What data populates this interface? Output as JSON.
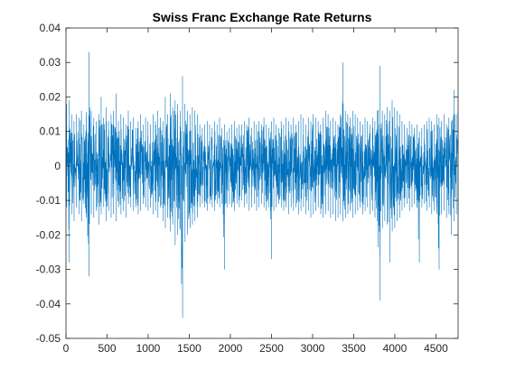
{
  "chart_data": {
    "type": "line",
    "title": "Swiss Franc Exchange Rate Returns",
    "xlabel": "",
    "ylabel": "",
    "xlim": [
      0,
      4770
    ],
    "ylim": [
      -0.05,
      0.04
    ],
    "x_ticks": [
      0,
      500,
      1000,
      1500,
      2000,
      2500,
      3000,
      3500,
      4000,
      4500
    ],
    "x_tick_labels": [
      "0",
      "500",
      "1000",
      "1500",
      "2000",
      "2500",
      "3000",
      "3500",
      "4000",
      "4500"
    ],
    "y_ticks": [
      -0.05,
      -0.04,
      -0.03,
      -0.02,
      -0.01,
      0,
      0.01,
      0.02,
      0.03,
      0.04
    ],
    "y_tick_labels": [
      "-0.05",
      "-0.04",
      "-0.03",
      "-0.02",
      "-0.01",
      "0",
      "0.01",
      "0.02",
      "0.03",
      "0.04"
    ],
    "grid": false,
    "legend": "none",
    "line_color": "#0072BD",
    "series": [
      {
        "x": [
          0,
          30,
          60,
          90,
          120,
          150,
          180,
          210,
          240,
          270,
          300,
          330,
          360,
          390,
          420,
          450,
          480,
          510,
          540,
          570,
          600,
          630,
          660,
          690,
          720,
          750,
          780,
          810,
          840,
          870,
          900,
          930,
          960,
          990,
          1020,
          1050,
          1080,
          1110,
          1140,
          1170,
          1200,
          1230,
          1260,
          1290,
          1320,
          1350,
          1380,
          1410,
          1440,
          1470,
          1500,
          1530,
          1560,
          1590,
          1620,
          1650,
          1680,
          1710,
          1740,
          1770,
          1800,
          1830,
          1860,
          1890,
          1920,
          1950,
          1980,
          2010,
          2040,
          2070,
          2100,
          2130,
          2160,
          2190,
          2220,
          2250,
          2280,
          2310,
          2340,
          2370,
          2400,
          2430,
          2460,
          2490,
          2520,
          2550,
          2580,
          2610,
          2640,
          2670,
          2700,
          2730,
          2760,
          2790,
          2820,
          2850,
          2880,
          2910,
          2940,
          2970,
          3000,
          3030,
          3060,
          3090,
          3120,
          3150,
          3180,
          3210,
          3240,
          3270,
          3300,
          3330,
          3360,
          3390,
          3420,
          3450,
          3480,
          3510,
          3540,
          3570,
          3600,
          3630,
          3660,
          3690,
          3720,
          3750,
          3780,
          3810,
          3840,
          3870,
          3900,
          3930,
          3960,
          3990,
          4020,
          4050,
          4080,
          4110,
          4140,
          4170,
          4200,
          4230,
          4260,
          4290,
          4320,
          4350,
          4380,
          4410,
          4440,
          4470,
          4500,
          4530,
          4560,
          4590,
          4620,
          4650,
          4680,
          4710,
          4740,
          4760
        ],
        "y_max": [
          0.018,
          0.019,
          0.015,
          0.013,
          0.015,
          0.014,
          0.016,
          0.012,
          0.014,
          0.033,
          0.016,
          0.014,
          0.013,
          0.015,
          0.02,
          0.014,
          0.017,
          0.013,
          0.015,
          0.016,
          0.021,
          0.013,
          0.015,
          0.014,
          0.012,
          0.016,
          0.013,
          0.014,
          0.011,
          0.013,
          0.015,
          0.012,
          0.014,
          0.013,
          0.012,
          0.015,
          0.013,
          0.016,
          0.014,
          0.013,
          0.02,
          0.015,
          0.021,
          0.017,
          0.019,
          0.018,
          0.016,
          0.026,
          0.018,
          0.016,
          0.015,
          0.017,
          0.016,
          0.015,
          0.012,
          0.011,
          0.012,
          0.013,
          0.012,
          0.011,
          0.013,
          0.012,
          0.014,
          0.011,
          0.012,
          0.01,
          0.011,
          0.012,
          0.013,
          0.011,
          0.012,
          0.012,
          0.013,
          0.012,
          0.014,
          0.011,
          0.013,
          0.012,
          0.013,
          0.012,
          0.014,
          0.012,
          0.011,
          0.013,
          0.014,
          0.012,
          0.011,
          0.013,
          0.012,
          0.014,
          0.013,
          0.012,
          0.014,
          0.012,
          0.013,
          0.015,
          0.014,
          0.012,
          0.014,
          0.013,
          0.015,
          0.014,
          0.013,
          0.012,
          0.014,
          0.016,
          0.015,
          0.013,
          0.014,
          0.013,
          0.012,
          0.015,
          0.03,
          0.016,
          0.015,
          0.014,
          0.016,
          0.015,
          0.014,
          0.013,
          0.012,
          0.014,
          0.013,
          0.012,
          0.014,
          0.013,
          0.016,
          0.029,
          0.016,
          0.015,
          0.017,
          0.016,
          0.019,
          0.017,
          0.016,
          0.015,
          0.013,
          0.012,
          0.011,
          0.013,
          0.012,
          0.011,
          0.012,
          0.01,
          0.011,
          0.012,
          0.013,
          0.014,
          0.013,
          0.012,
          0.015,
          0.014,
          0.013,
          0.015,
          0.012,
          0.014,
          0.013,
          0.022,
          0.015,
          0.016
        ],
        "y_min": [
          -0.012,
          -0.028,
          -0.014,
          -0.016,
          -0.012,
          -0.014,
          -0.016,
          -0.011,
          -0.015,
          -0.032,
          -0.014,
          -0.015,
          -0.013,
          -0.017,
          -0.014,
          -0.012,
          -0.016,
          -0.013,
          -0.015,
          -0.014,
          -0.016,
          -0.012,
          -0.014,
          -0.013,
          -0.015,
          -0.011,
          -0.012,
          -0.013,
          -0.012,
          -0.014,
          -0.013,
          -0.011,
          -0.012,
          -0.013,
          -0.012,
          -0.014,
          -0.013,
          -0.015,
          -0.012,
          -0.016,
          -0.018,
          -0.015,
          -0.019,
          -0.017,
          -0.023,
          -0.02,
          -0.018,
          -0.044,
          -0.022,
          -0.02,
          -0.018,
          -0.017,
          -0.016,
          -0.015,
          -0.012,
          -0.011,
          -0.012,
          -0.013,
          -0.011,
          -0.012,
          -0.013,
          -0.011,
          -0.012,
          -0.011,
          -0.03,
          -0.012,
          -0.011,
          -0.012,
          -0.013,
          -0.011,
          -0.012,
          -0.01,
          -0.012,
          -0.011,
          -0.013,
          -0.012,
          -0.011,
          -0.013,
          -0.012,
          -0.011,
          -0.012,
          -0.013,
          -0.012,
          -0.027,
          -0.013,
          -0.012,
          -0.011,
          -0.012,
          -0.013,
          -0.012,
          -0.014,
          -0.012,
          -0.013,
          -0.012,
          -0.014,
          -0.013,
          -0.012,
          -0.014,
          -0.013,
          -0.015,
          -0.014,
          -0.013,
          -0.012,
          -0.014,
          -0.015,
          -0.014,
          -0.013,
          -0.015,
          -0.014,
          -0.016,
          -0.015,
          -0.014,
          -0.016,
          -0.015,
          -0.014,
          -0.013,
          -0.015,
          -0.014,
          -0.013,
          -0.012,
          -0.014,
          -0.013,
          -0.012,
          -0.014,
          -0.013,
          -0.015,
          -0.016,
          -0.039,
          -0.018,
          -0.016,
          -0.017,
          -0.028,
          -0.019,
          -0.018,
          -0.016,
          -0.015,
          -0.013,
          -0.012,
          -0.011,
          -0.013,
          -0.012,
          -0.011,
          -0.012,
          -0.028,
          -0.012,
          -0.011,
          -0.013,
          -0.012,
          -0.014,
          -0.013,
          -0.012,
          -0.03,
          -0.014,
          -0.013,
          -0.015,
          -0.014,
          -0.02,
          -0.016,
          -0.014,
          -0.013
        ]
      }
    ]
  }
}
